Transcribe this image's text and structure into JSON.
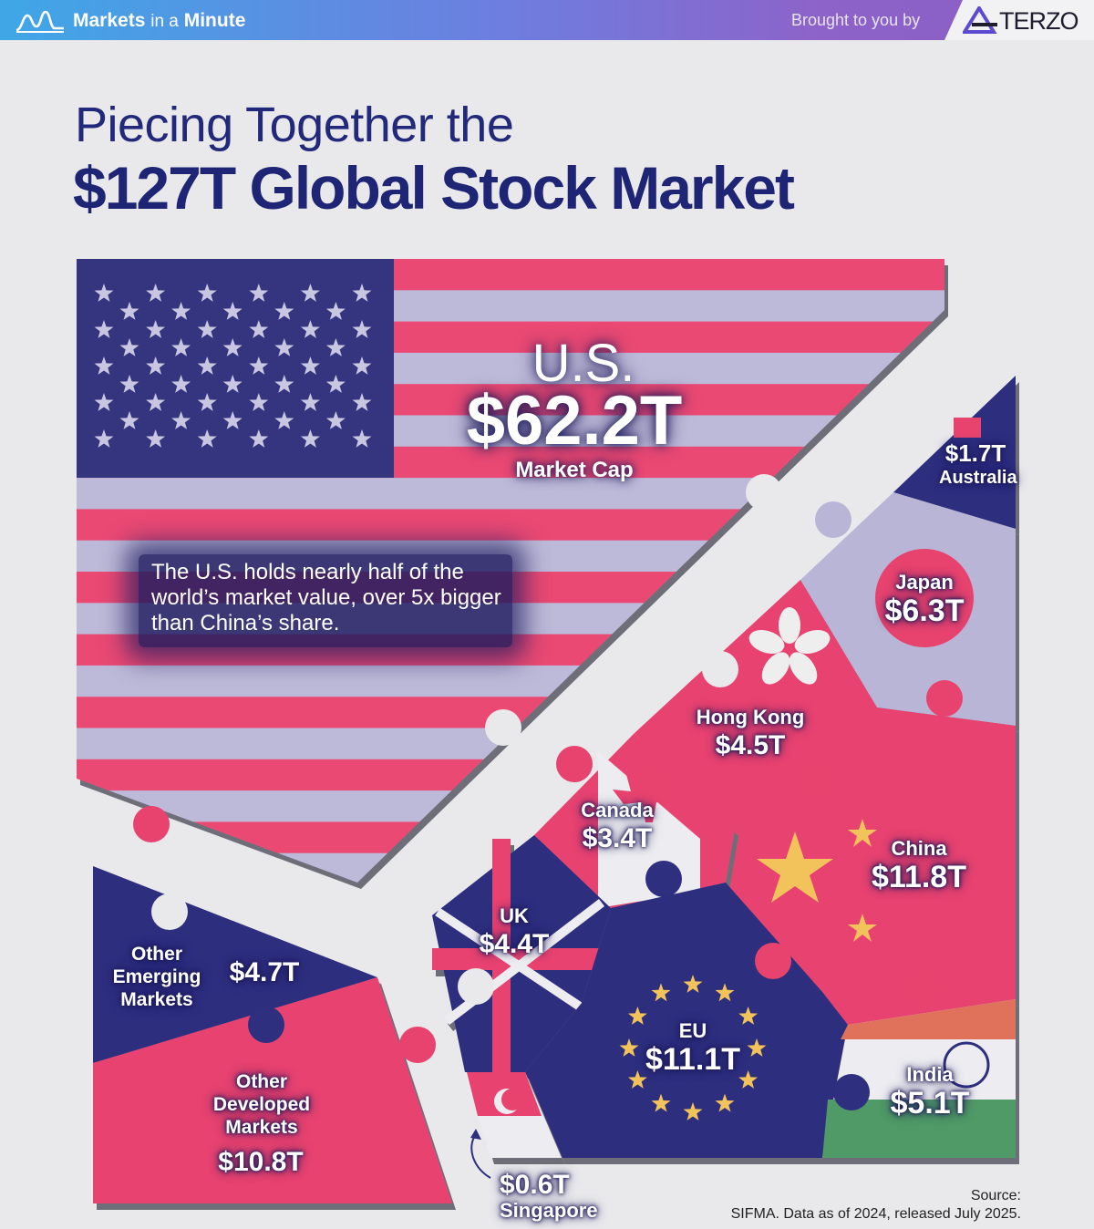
{
  "header": {
    "brand": "Markets",
    "brand_suffix": "in a",
    "brand_end": "Minute",
    "sponsor_text": "Brought to you by",
    "sponsor_name": "TERZO"
  },
  "title": {
    "line1": "Piecing Together the",
    "line2": "$127T Global Stock Market"
  },
  "note": "The U.S. holds nearly half of the world’s market value, over 5x bigger than China’s share.",
  "chart_data": {
    "type": "treemap-puzzle",
    "title": "Piecing Together the $127T Global Stock Market",
    "total": "$127T",
    "unit": "Market Cap",
    "pieces": [
      {
        "name": "U.S.",
        "value": 62.2,
        "label": "$62.2T"
      },
      {
        "name": "China",
        "value": 11.8,
        "label": "$11.8T"
      },
      {
        "name": "EU",
        "value": 11.1,
        "label": "$11.1T"
      },
      {
        "name": "Other Developed Markets",
        "value": 10.8,
        "label": "$10.8T"
      },
      {
        "name": "Japan",
        "value": 6.3,
        "label": "$6.3T"
      },
      {
        "name": "India",
        "value": 5.1,
        "label": "$5.1T"
      },
      {
        "name": "Other Emerging Markets",
        "value": 4.7,
        "label": "$4.7T"
      },
      {
        "name": "Hong Kong",
        "value": 4.5,
        "label": "$4.5T"
      },
      {
        "name": "UK",
        "value": 4.4,
        "label": "$4.4T"
      },
      {
        "name": "Canada",
        "value": 3.4,
        "label": "$3.4T"
      },
      {
        "name": "Australia",
        "value": 1.7,
        "label": "$1.7T"
      },
      {
        "name": "Singapore",
        "value": 0.6,
        "label": "$0.6T"
      }
    ]
  },
  "labels": {
    "us_name": "U.S.",
    "us_value": "$62.2T",
    "us_sub": "Market Cap",
    "australia_value": "$1.7T",
    "australia_name": "Australia",
    "japan_name": "Japan",
    "japan_value": "$6.3T",
    "hongkong_name": "Hong Kong",
    "hongkong_value": "$4.5T",
    "canada_name": "Canada",
    "canada_value": "$3.4T",
    "china_name": "China",
    "china_value": "$11.8T",
    "uk_name": "UK",
    "uk_value": "$4.4T",
    "eu_name": "EU",
    "eu_value": "$11.1T",
    "india_name": "India",
    "india_value": "$5.1T",
    "singapore_value": "$0.6T",
    "singapore_name": "Singapore",
    "oem_name": "Other Emerging Markets",
    "oem_value": "$4.7T",
    "odm_name": "Other Developed Markets",
    "odm_value": "$10.8T"
  },
  "source": {
    "label": "Source:",
    "text": "SIFMA. Data as of 2024, released July 2025."
  },
  "colors": {
    "navy": "#2e2f7f",
    "pink": "#e8436f",
    "lavender": "#b8b5d6",
    "background": "#e9e9ec"
  }
}
